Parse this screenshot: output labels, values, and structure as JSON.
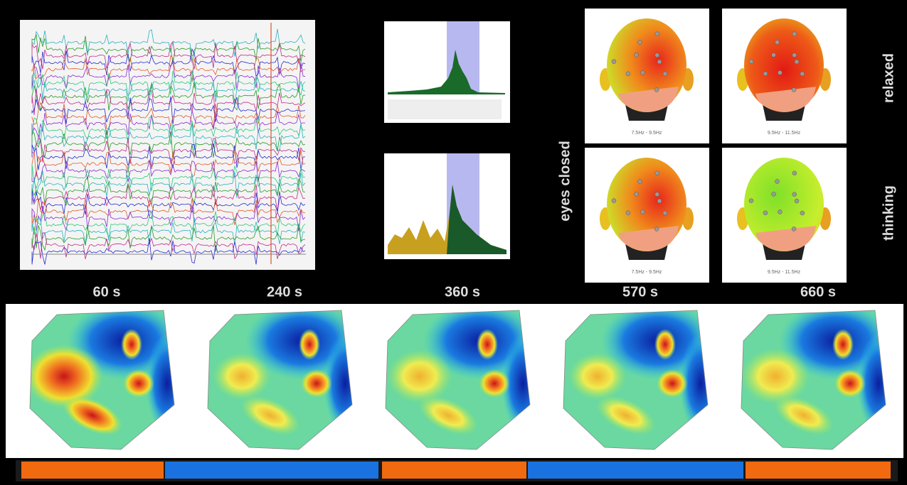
{
  "labels": {
    "vertical_center": "eyes closed",
    "vertical_top": "relaxed",
    "vertical_bottom": "thinking",
    "head_captions": [
      "7.5Hz - 9.5Hz",
      "9.5Hz - 11.5Hz",
      "7.5Hz - 9.5Hz",
      "9.5Hz - 11.5Hz"
    ],
    "times": [
      "60 s",
      "240 s",
      "360 s",
      "570 s",
      "660 s"
    ]
  }
}
